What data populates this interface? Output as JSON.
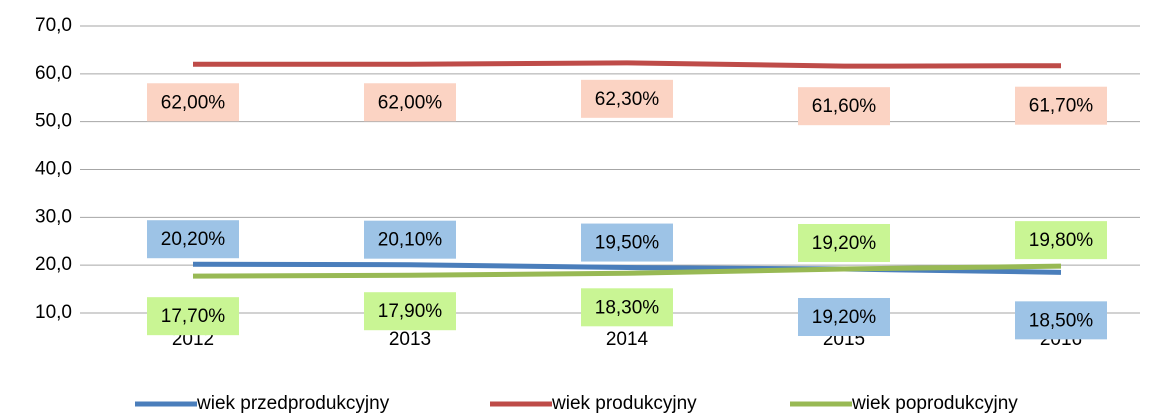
{
  "chart_data": {
    "type": "line",
    "categories": [
      "2012",
      "2013",
      "2014",
      "2015",
      "2016"
    ],
    "series": [
      {
        "name": "wiek przedprodukcyjny",
        "color": "#4a7ebb",
        "label_color": "#9dc3e6",
        "values": [
          20.2,
          20.1,
          19.5,
          19.2,
          18.5
        ],
        "value_labels": [
          "20,20%",
          "20,10%",
          "19,50%",
          "19,20%",
          "18,50%"
        ]
      },
      {
        "name": "wiek produkcyjny",
        "color": "#be4b48",
        "label_color": "#fbd3c3",
        "values": [
          62.0,
          62.0,
          62.3,
          61.6,
          61.7
        ],
        "value_labels": [
          "62,00%",
          "62,00%",
          "62,30%",
          "61,60%",
          "61,70%"
        ]
      },
      {
        "name": "wiek poprodukcyjny",
        "color": "#98b954",
        "label_color": "#c9f594",
        "values": [
          17.7,
          17.9,
          18.3,
          19.2,
          19.8
        ],
        "value_labels": [
          "17,70%",
          "17,90%",
          "18,30%",
          "19,20%",
          "19,80%"
        ]
      }
    ],
    "ylim": [
      10,
      70
    ],
    "yticks": [
      {
        "value": 10,
        "label": "10,0"
      },
      {
        "value": 20,
        "label": "20,0"
      },
      {
        "value": 30,
        "label": "30,0"
      },
      {
        "value": 40,
        "label": "40,0"
      },
      {
        "value": 50,
        "label": "50,0"
      },
      {
        "value": 60,
        "label": "60,0"
      },
      {
        "value": 70,
        "label": "70,0"
      }
    ],
    "grid": true,
    "legend": "bottom"
  }
}
